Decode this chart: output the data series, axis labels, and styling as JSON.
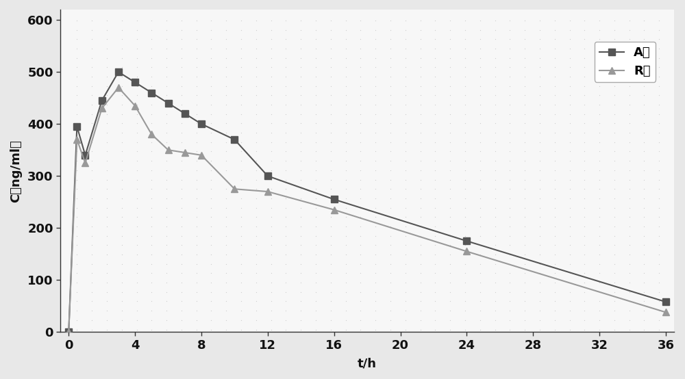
{
  "A_x": [
    0,
    0.5,
    1,
    2,
    3,
    4,
    5,
    6,
    7,
    8,
    10,
    12,
    16,
    24,
    36
  ],
  "A_y": [
    0,
    395,
    340,
    445,
    500,
    480,
    460,
    440,
    420,
    400,
    370,
    300,
    255,
    175,
    58
  ],
  "R_x": [
    0,
    0.5,
    1,
    2,
    3,
    4,
    5,
    6,
    7,
    8,
    10,
    12,
    16,
    24,
    36
  ],
  "R_y": [
    0,
    370,
    325,
    430,
    470,
    435,
    380,
    350,
    345,
    340,
    275,
    270,
    235,
    155,
    38
  ],
  "A_color": "#555555",
  "R_color": "#999999",
  "A_label": "A药",
  "R_label": "R药",
  "xlabel": "t/h",
  "ylabel": "C（ng/ml）",
  "xlim": [
    -0.5,
    36.5
  ],
  "ylim": [
    0,
    620
  ],
  "xticks": [
    0,
    4,
    8,
    12,
    16,
    20,
    24,
    28,
    32,
    36
  ],
  "yticks": [
    0,
    100,
    200,
    300,
    400,
    500,
    600
  ],
  "fig_bg": "#e8e8e8",
  "plot_bg": "#f7f7f7",
  "marker_A": "s",
  "marker_R": "^",
  "marker_size": 7,
  "line_width": 1.5,
  "axis_fontsize": 13,
  "tick_fontsize": 13,
  "legend_fontsize": 13
}
